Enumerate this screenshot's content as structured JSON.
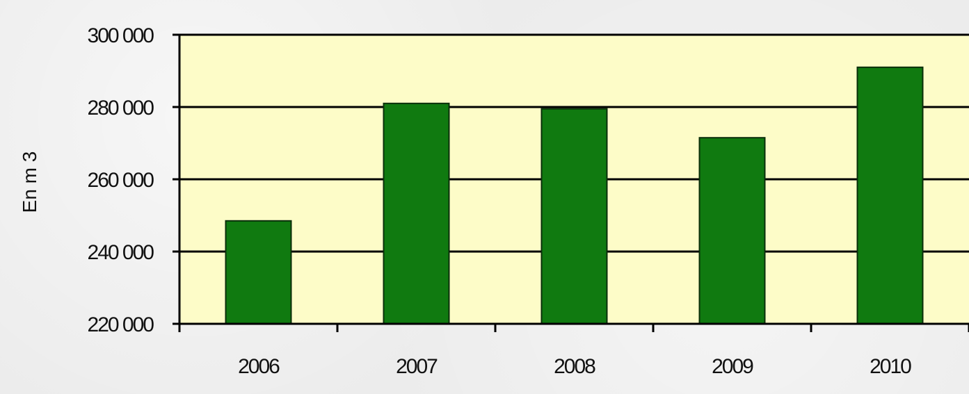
{
  "chart_data": {
    "type": "bar",
    "title": "",
    "xlabel": "",
    "ylabel": "En m 3",
    "categories": [
      "2006",
      "2007",
      "2008",
      "2009",
      "2010"
    ],
    "values": [
      248500,
      281000,
      279500,
      271500,
      291000
    ],
    "ylim": [
      220000,
      300000
    ],
    "yticks": [
      220000,
      240000,
      260000,
      280000,
      300000
    ],
    "ytick_labels": [
      "220 000",
      "240 000",
      "260 000",
      "280 000",
      "300 000"
    ],
    "grid": true,
    "legend": "none"
  },
  "colors": {
    "plot_background": "#fdfcc8",
    "bar_fill": "#107a10",
    "bar_edge": "#0a2e0a",
    "grid": "#000000",
    "axis": "#000000",
    "text": "#111111"
  }
}
